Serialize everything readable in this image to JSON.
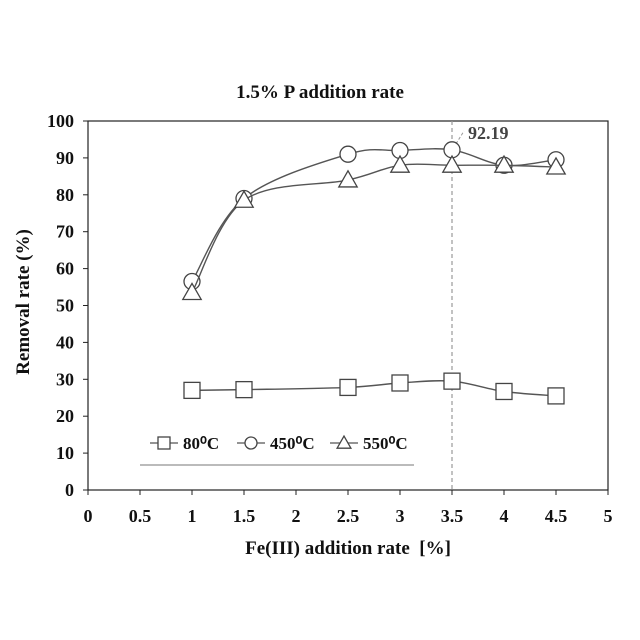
{
  "chart_data": {
    "type": "line",
    "title": "1.5% P addition rate",
    "xlabel": "Fe(III) addition rate  [%]",
    "ylabel": "Removal rate (%)",
    "xlim": [
      0,
      5
    ],
    "ylim": [
      0,
      100
    ],
    "x_ticks": [
      "0",
      "0.5",
      "1",
      "1.5",
      "2",
      "2.5",
      "3",
      "3.5",
      "4",
      "4.5",
      "5"
    ],
    "y_ticks": [
      "0",
      "10",
      "20",
      "30",
      "40",
      "50",
      "60",
      "70",
      "80",
      "90",
      "100"
    ],
    "grid": false,
    "legend_position": "bottom-left",
    "series": [
      {
        "name": "80⁰C",
        "marker": "square",
        "x": [
          1,
          1.5,
          2.5,
          3,
          3.5,
          4,
          4.5
        ],
        "values": [
          27,
          27.2,
          27.8,
          29,
          29.5,
          26.7,
          25.5
        ]
      },
      {
        "name": "450⁰C",
        "marker": "circle",
        "x": [
          1,
          1.5,
          2.5,
          3,
          3.5,
          4,
          4.5
        ],
        "values": [
          56.5,
          79,
          91,
          92,
          92.19,
          88,
          89.5
        ]
      },
      {
        "name": "550⁰C",
        "marker": "triangle",
        "x": [
          1,
          1.5,
          2.5,
          3,
          3.5,
          4,
          4.5
        ],
        "values": [
          53.5,
          78.5,
          84,
          88,
          88,
          88,
          87.5
        ]
      }
    ],
    "annotations": [
      {
        "text": "92.19",
        "x": 3.5,
        "y": 92.19,
        "reference_line": "vertical dashed at x=3.5"
      }
    ],
    "colors": {
      "line": "#555555",
      "marker_stroke": "#444444",
      "axis": "#222222",
      "reference_line": "#999999"
    }
  }
}
